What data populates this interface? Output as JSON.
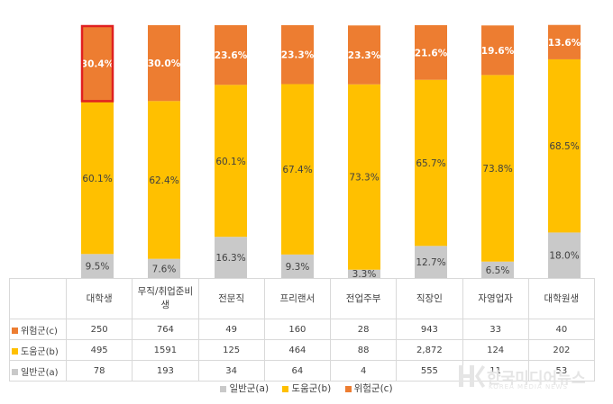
{
  "chart_data": {
    "type": "bar",
    "stacked": true,
    "percent": true,
    "categories": [
      "대학생",
      "무직/취업준비생",
      "전문직",
      "프리랜서",
      "전업주부",
      "직장인",
      "자영업자",
      "대학원생"
    ],
    "series": [
      {
        "name": "일반군(a)",
        "color": "#c9c9c9",
        "values": [
          9.5,
          7.6,
          16.3,
          9.3,
          3.3,
          12.7,
          6.5,
          18.0
        ],
        "labels": [
          "9.5%",
          "7.6%",
          "16.3%",
          "9.3%",
          "3.3%",
          "12.7%",
          "6.5%",
          "18.0%"
        ]
      },
      {
        "name": "도움군(b)",
        "color": "#ffc000",
        "values": [
          60.1,
          62.4,
          60.1,
          67.4,
          73.3,
          65.7,
          73.8,
          68.5
        ],
        "labels": [
          "60.1%",
          "62.4%",
          "60.1%",
          "67.4%",
          "73.3%",
          "65.7%",
          "73.8%",
          "68.5%"
        ]
      },
      {
        "name": "위험군(c)",
        "color": "#ed7d31",
        "values": [
          30.4,
          30.0,
          23.6,
          23.3,
          23.3,
          21.6,
          19.6,
          13.6
        ],
        "labels": [
          "30.4%",
          "30.0%",
          "23.6%",
          "23.3%",
          "23.3%",
          "21.6%",
          "19.6%",
          "13.6%"
        ]
      }
    ],
    "highlight": {
      "category": "대학생",
      "series": "위험군(c)",
      "color": "#e02020"
    },
    "legend_position": "bottom",
    "grid": false
  },
  "table": {
    "headers": [
      "대학생",
      "무직/취업준비\n생",
      "전문직",
      "프리랜서",
      "전업주부",
      "직장인",
      "자영업자",
      "대학원생"
    ],
    "rows": [
      {
        "label": "위험군(c)",
        "color": "#ed7d31",
        "cells": [
          "250",
          "764",
          "49",
          "160",
          "28",
          "943",
          "33",
          "40"
        ]
      },
      {
        "label": "도움군(b)",
        "color": "#ffc000",
        "cells": [
          "495",
          "1591",
          "125",
          "464",
          "88",
          "2,872",
          "124",
          "202"
        ]
      },
      {
        "label": "일반군(a)",
        "color": "#c9c9c9",
        "cells": [
          "78",
          "193",
          "34",
          "64",
          "4",
          "555",
          "11",
          "53"
        ]
      }
    ]
  },
  "legend": [
    {
      "label": "일반군(a)",
      "color": "#c9c9c9"
    },
    {
      "label": "도움군(b)",
      "color": "#ffc000"
    },
    {
      "label": "위험군(c)",
      "color": "#ed7d31"
    }
  ],
  "watermark": {
    "logo": "HK",
    "name": "한국미디어뉴스",
    "sub": "KOREA MEDIA NEWS"
  }
}
